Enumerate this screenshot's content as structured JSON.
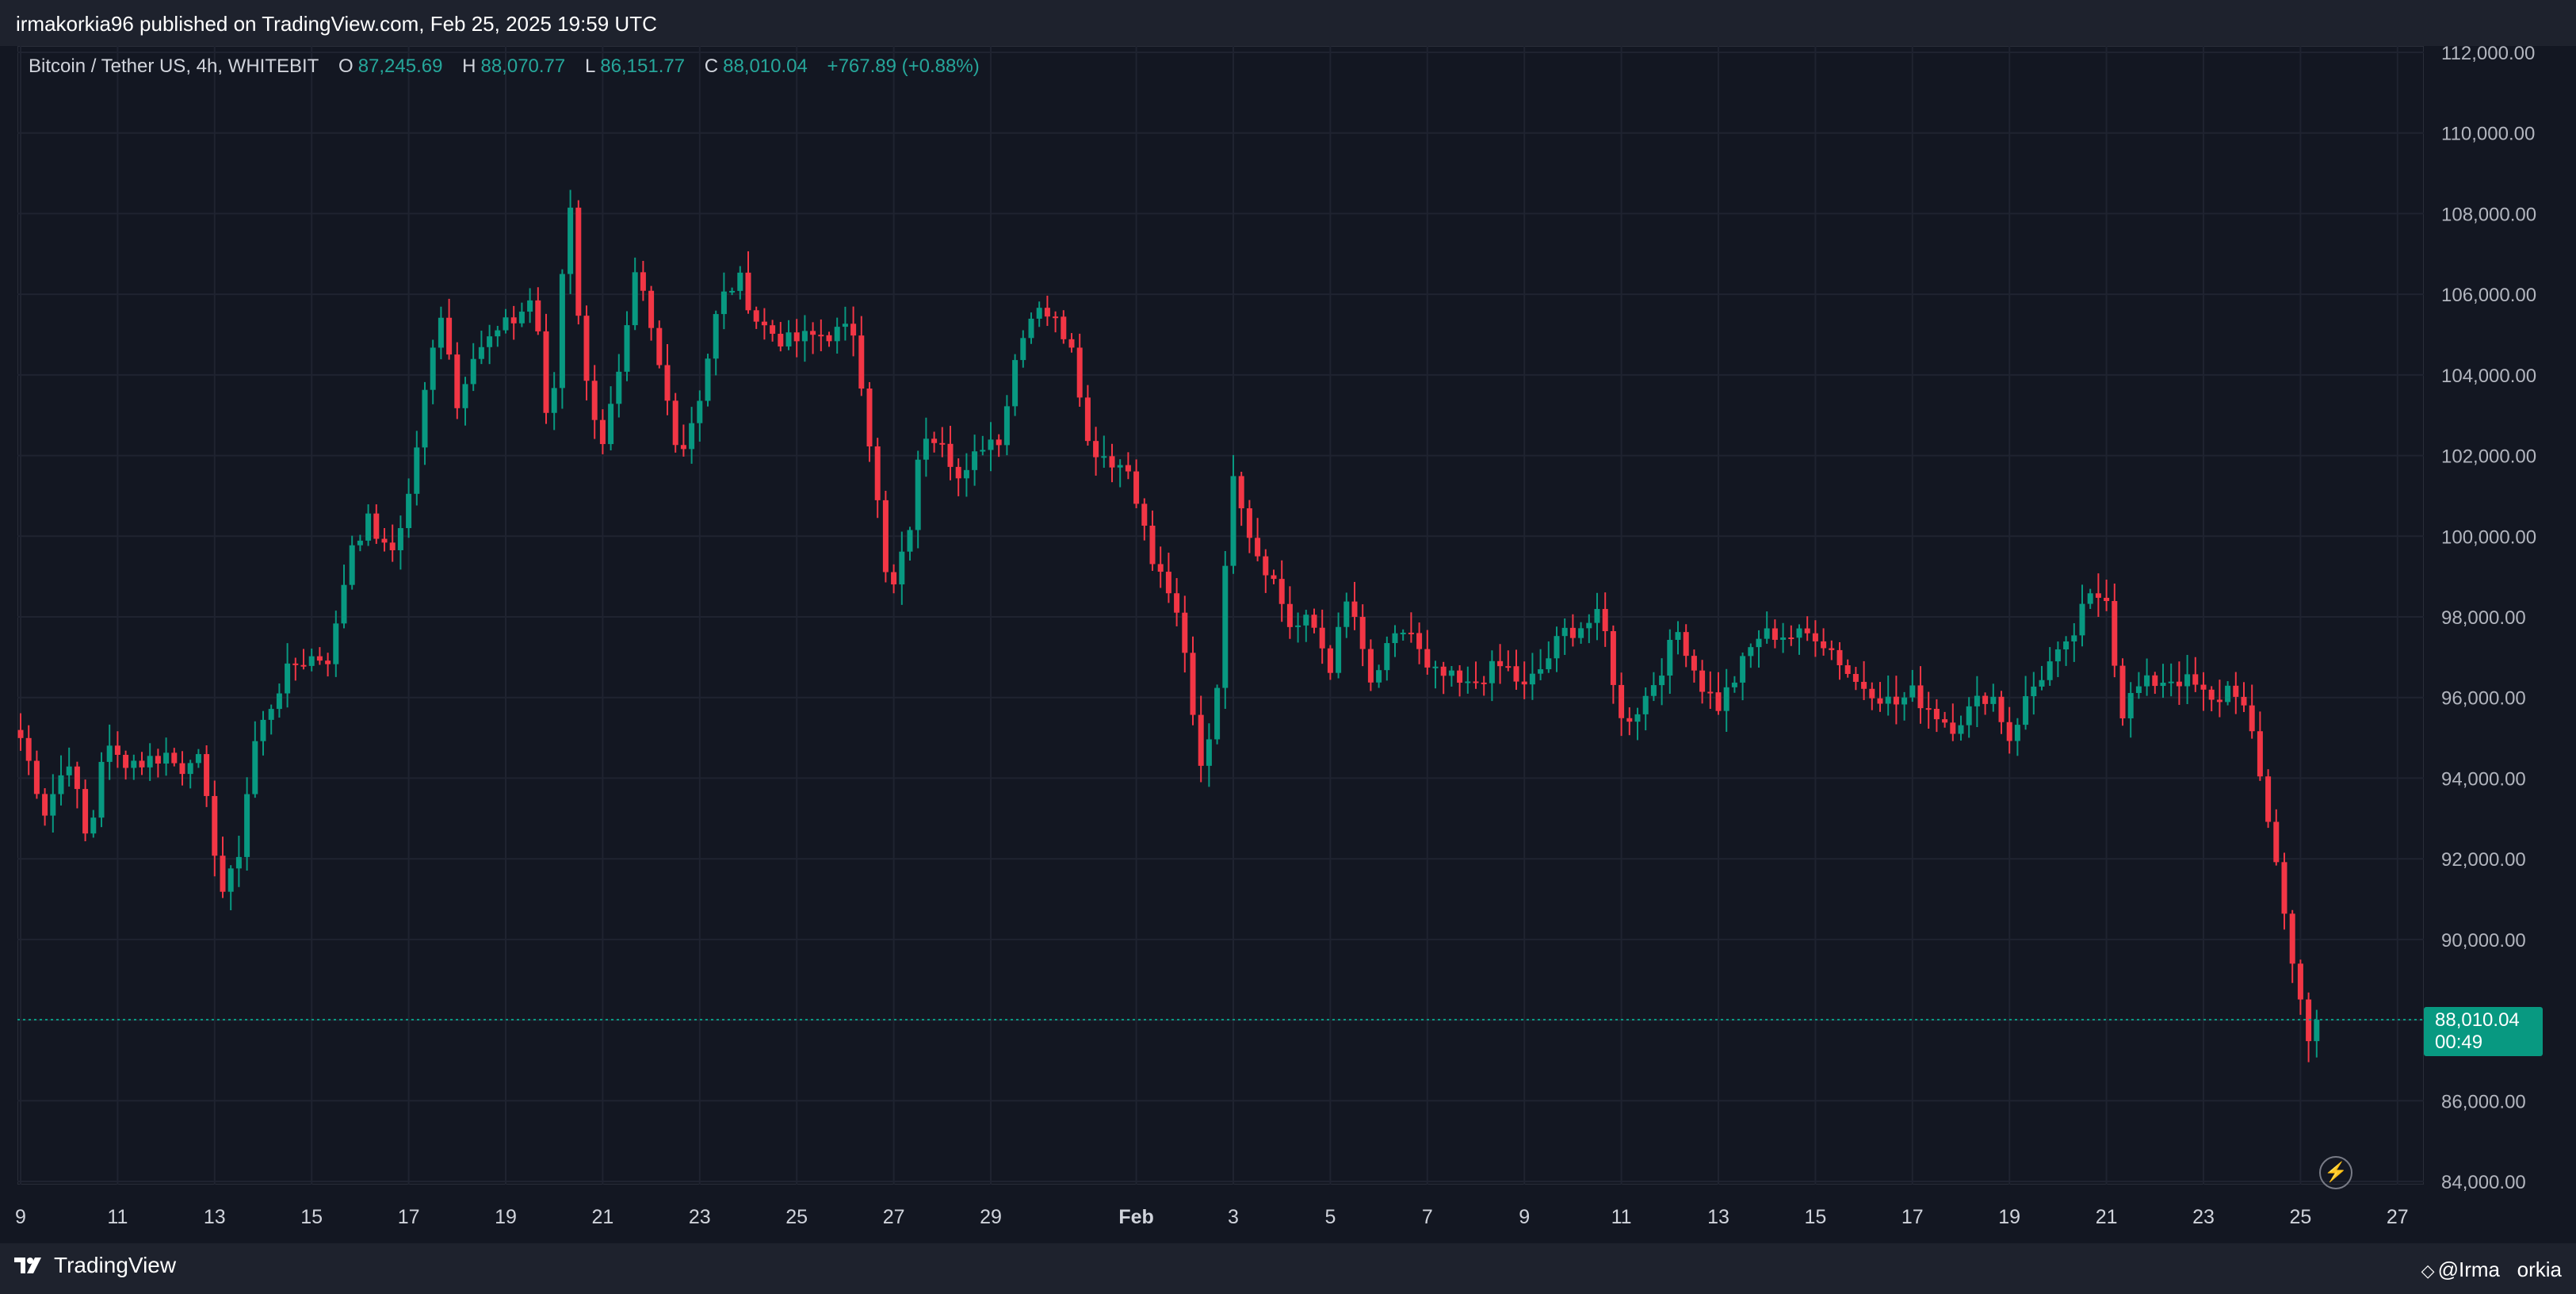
{
  "header": {
    "publisher": "irmakorkia96 published on TradingView.com, Feb 25, 2025 19:59 UTC"
  },
  "legend": {
    "symbol": "Bitcoin / Tether US, 4h, WHITEBIT",
    "open_key": "O",
    "open": "87,245.69",
    "high_key": "H",
    "high": "88,070.77",
    "low_key": "L",
    "low": "86,151.77",
    "close_key": "C",
    "close": "88,010.04",
    "change": "+767.89 (+0.88%)"
  },
  "price_tag": {
    "price": "88,010.04",
    "countdown": "00:49",
    "value": 88010.04
  },
  "footer": {
    "brand": "TradingView",
    "handle": "@Irma   orkia"
  },
  "colors": {
    "background": "#131722",
    "up": "#089981",
    "down": "#f23645",
    "grid": "#2a2e39",
    "text": "#b2b5be"
  },
  "chart_data": {
    "type": "candlestick",
    "ylim": [
      84000,
      112000
    ],
    "y_ticks": [
      84000,
      86000,
      88000,
      90000,
      92000,
      94000,
      96000,
      98000,
      100000,
      102000,
      104000,
      106000,
      108000,
      110000,
      112000
    ],
    "y_tick_labels": [
      "84,000.00",
      "86,000.00",
      "88,000.00",
      "90,000.00",
      "92,000.00",
      "94,000.00",
      "96,000.00",
      "98,000.00",
      "100,000.00",
      "102,000.00",
      "104,000.00",
      "106,000.00",
      "108,000.00",
      "110,000.00",
      "112,000.00"
    ],
    "x_ticks": [
      {
        "label": "9",
        "day": 0
      },
      {
        "label": "11",
        "day": 2
      },
      {
        "label": "13",
        "day": 4
      },
      {
        "label": "15",
        "day": 6
      },
      {
        "label": "17",
        "day": 8
      },
      {
        "label": "19",
        "day": 10
      },
      {
        "label": "21",
        "day": 12
      },
      {
        "label": "23",
        "day": 14
      },
      {
        "label": "25",
        "day": 16
      },
      {
        "label": "27",
        "day": 18
      },
      {
        "label": "29",
        "day": 20
      },
      {
        "label": "Feb",
        "day": 23
      },
      {
        "label": "3",
        "day": 25
      },
      {
        "label": "5",
        "day": 27
      },
      {
        "label": "7",
        "day": 29
      },
      {
        "label": "9",
        "day": 31
      },
      {
        "label": "11",
        "day": 33
      },
      {
        "label": "13",
        "day": 35
      },
      {
        "label": "15",
        "day": 37
      },
      {
        "label": "17",
        "day": 39
      },
      {
        "label": "19",
        "day": 41
      },
      {
        "label": "21",
        "day": 43
      },
      {
        "label": "23",
        "day": 45
      },
      {
        "label": "25",
        "day": 47
      },
      {
        "label": "27",
        "day": 49
      }
    ],
    "anchors": [
      [
        0,
        95000
      ],
      [
        0.5,
        93200
      ],
      [
        1.0,
        94500
      ],
      [
        1.4,
        92200
      ],
      [
        1.7,
        94800
      ],
      [
        2.0,
        94500
      ],
      [
        2.5,
        94400
      ],
      [
        3.0,
        94600
      ],
      [
        3.3,
        94200
      ],
      [
        3.6,
        94800
      ],
      [
        4.2,
        91000
      ],
      [
        4.5,
        92200
      ],
      [
        4.8,
        94800
      ],
      [
        5.3,
        96200
      ],
      [
        5.6,
        96800
      ],
      [
        6.0,
        97000
      ],
      [
        6.4,
        97000
      ],
      [
        6.8,
        99800
      ],
      [
        7.2,
        100400
      ],
      [
        7.6,
        99400
      ],
      [
        8.0,
        101000
      ],
      [
        8.4,
        104000
      ],
      [
        8.7,
        105800
      ],
      [
        9.0,
        103200
      ],
      [
        9.3,
        104600
      ],
      [
        9.6,
        104800
      ],
      [
        10.2,
        105400
      ],
      [
        10.6,
        106000
      ],
      [
        10.9,
        102000
      ],
      [
        11.3,
        108800
      ],
      [
        11.6,
        104000
      ],
      [
        12.0,
        102400
      ],
      [
        12.4,
        104200
      ],
      [
        12.7,
        106600
      ],
      [
        13.2,
        104000
      ],
      [
        13.6,
        102000
      ],
      [
        14.0,
        103500
      ],
      [
        14.4,
        105800
      ],
      [
        14.8,
        106400
      ],
      [
        15.2,
        105300
      ],
      [
        15.8,
        104800
      ],
      [
        16.5,
        105000
      ],
      [
        17.2,
        105100
      ],
      [
        17.6,
        101500
      ],
      [
        17.9,
        98300
      ],
      [
        18.3,
        100000
      ],
      [
        18.6,
        102600
      ],
      [
        19.0,
        102500
      ],
      [
        19.4,
        101200
      ],
      [
        19.8,
        102300
      ],
      [
        20.2,
        102500
      ],
      [
        20.6,
        105000
      ],
      [
        21.0,
        105800
      ],
      [
        21.4,
        105200
      ],
      [
        21.7,
        104800
      ],
      [
        22.0,
        102300
      ],
      [
        22.5,
        101900
      ],
      [
        22.9,
        101600
      ],
      [
        23.3,
        99400
      ],
      [
        23.7,
        98600
      ],
      [
        24.0,
        97000
      ],
      [
        24.3,
        94300
      ],
      [
        24.6,
        95400
      ],
      [
        25.0,
        101700
      ],
      [
        25.4,
        99800
      ],
      [
        25.8,
        99000
      ],
      [
        26.2,
        97700
      ],
      [
        26.6,
        97900
      ],
      [
        27.0,
        96800
      ],
      [
        27.4,
        98600
      ],
      [
        27.8,
        96200
      ],
      [
        28.2,
        97200
      ],
      [
        28.6,
        97800
      ],
      [
        29.0,
        96600
      ],
      [
        29.4,
        96500
      ],
      [
        29.8,
        96200
      ],
      [
        30.2,
        96600
      ],
      [
        30.6,
        96800
      ],
      [
        31.0,
        96200
      ],
      [
        31.4,
        96800
      ],
      [
        31.8,
        97600
      ],
      [
        32.2,
        97800
      ],
      [
        32.6,
        98000
      ],
      [
        33.0,
        95400
      ],
      [
        33.4,
        95800
      ],
      [
        33.8,
        96700
      ],
      [
        34.2,
        97700
      ],
      [
        34.6,
        96400
      ],
      [
        35.0,
        95800
      ],
      [
        35.4,
        96600
      ],
      [
        35.8,
        97500
      ],
      [
        36.2,
        97600
      ],
      [
        36.6,
        97500
      ],
      [
        37.0,
        97600
      ],
      [
        37.4,
        97100
      ],
      [
        37.8,
        96400
      ],
      [
        38.2,
        96200
      ],
      [
        38.6,
        95800
      ],
      [
        39.0,
        96100
      ],
      [
        39.4,
        95700
      ],
      [
        39.8,
        95300
      ],
      [
        40.2,
        95700
      ],
      [
        40.6,
        96200
      ],
      [
        41.0,
        95000
      ],
      [
        41.4,
        96100
      ],
      [
        41.8,
        96800
      ],
      [
        42.2,
        97200
      ],
      [
        42.6,
        98400
      ],
      [
        43.0,
        98600
      ],
      [
        43.3,
        95600
      ],
      [
        43.6,
        96200
      ],
      [
        44.0,
        96400
      ],
      [
        44.4,
        96500
      ],
      [
        44.8,
        96300
      ],
      [
        45.2,
        95800
      ],
      [
        45.6,
        96400
      ],
      [
        45.9,
        95500
      ],
      [
        46.2,
        93800
      ],
      [
        46.5,
        92000
      ],
      [
        46.8,
        89500
      ],
      [
        47.0,
        88700
      ],
      [
        47.2,
        87300
      ],
      [
        47.4,
        88010
      ]
    ]
  }
}
